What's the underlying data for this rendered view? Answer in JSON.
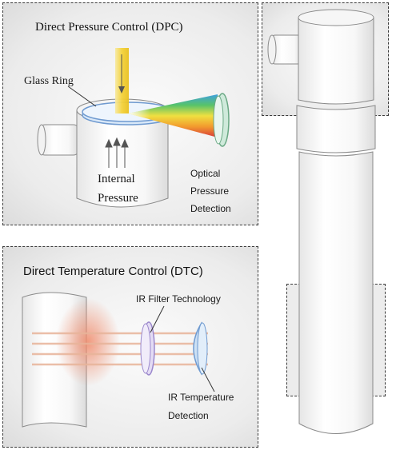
{
  "dpc": {
    "title": "Direct Pressure Control (DPC)",
    "glass_ring": "Glass Ring",
    "internal_line1": "Internal",
    "internal_line2": "Pressure",
    "optical_line1": "Optical",
    "optical_line2": "Pressure",
    "optical_line3": "Detection"
  },
  "dtc": {
    "title": "Direct Temperature Control (DTC)",
    "ir_filter": "IR Filter Technology",
    "ir_temp_line1": "IR Temperature",
    "ir_temp_line2": "Detection"
  },
  "colors": {
    "panel_border": "#3a3a3a",
    "laser_yellow": "#f4d23a",
    "ir_beam": "#e8b49a",
    "ring_blue": "#8fb8e8",
    "filter_violet": "#b8a6e0"
  },
  "icons": {
    "spectrum": "rainbow-dispersion",
    "arrows": "pressure-arrows"
  }
}
